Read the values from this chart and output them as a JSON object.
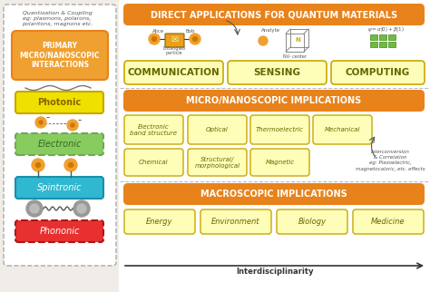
{
  "bg_color": "#f0ede8",
  "orange_header": "#E8821A",
  "orange_box": "#F0A030",
  "light_yellow": "#FEFEB8",
  "yellow_dashed_edge": "#C8A800",
  "green_dashed_edge": "#70A858",
  "white_bg": "#FFFFFF",
  "title_direct": "DIRECT APPLICATIONS FOR QUANTUM MATERIALS",
  "title_micro": "MICRO/NANOSCOPIC IMPLICATIONS",
  "title_macro": "MACROSCOPIC IMPLICATIONS",
  "title_primary": "PRIMARY\nMICRO/NANOSCOPIC\nINTERACTIONS",
  "left_labels": [
    "Photonic",
    "Electronic",
    "Spintronic",
    "Phononic"
  ],
  "left_colors": [
    "#F0E000",
    "#88CC60",
    "#30B8D0",
    "#E83030"
  ],
  "left_edge_colors": [
    "#C8A800",
    "#70A858",
    "#1890A8",
    "#AA1818"
  ],
  "left_edge_styles": [
    "-",
    "--",
    "-",
    "--"
  ],
  "left_text_colors": [
    "#886600",
    "#336622",
    "#003366",
    "#661111"
  ],
  "direct_apps": [
    "COMMUNICATION",
    "SENSING",
    "COMPUTING"
  ],
  "micro_row1": [
    "Electronic\nband structure",
    "Optical",
    "Thermoelectric",
    "Mechanical"
  ],
  "micro_row2": [
    "Chemical",
    "Structural/\nmorphological",
    "Magnetic"
  ],
  "macro_apps": [
    "Energy",
    "Environment",
    "Biology",
    "Medicine"
  ],
  "quant_text": "Quantization & Coupling\neg: plasmons, polarons,\npolaritons, magnons etc.",
  "interconv_text": "Interconversion\n& Correlation\neg: Piezoelectric,\nmagnetocaloric, etc. effects",
  "interdis_text": "Interdisciplinarity"
}
